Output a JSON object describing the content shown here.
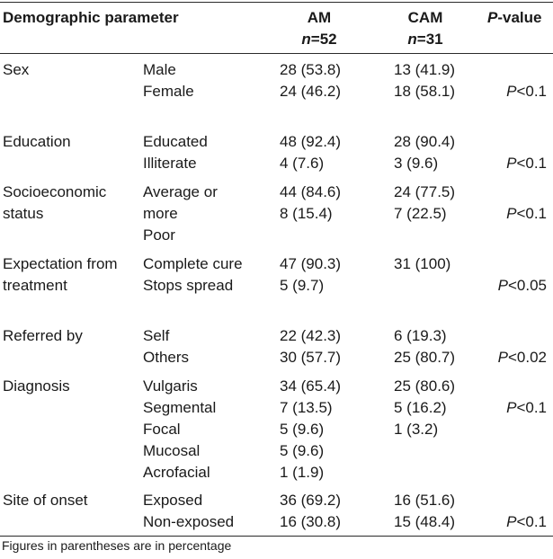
{
  "header": {
    "param": "Demographic parameter",
    "am": "AM",
    "am_n_label": "n",
    "am_n_value": "=52",
    "cam": "CAM",
    "cam_n_label": "n",
    "cam_n_value": "=31",
    "p_italic": "P",
    "p_rest": "-value"
  },
  "rows": [
    {
      "param": [
        "Sex"
      ],
      "subs": [
        "Male",
        "Female"
      ],
      "am": [
        "28 (53.8)",
        "24 (46.2)"
      ],
      "cam": [
        "13 (41.9)",
        "18 (58.1)"
      ],
      "p_label": "P",
      "p_value": "<0.1"
    },
    {
      "param": [
        "Education"
      ],
      "subs": [
        "Educated",
        "Illiterate"
      ],
      "am": [
        "48 (92.4)",
        "4 (7.6)"
      ],
      "cam": [
        "28 (90.4)",
        "3 (9.6)"
      ],
      "p_label": "P",
      "p_value": "<0.1"
    },
    {
      "param": [
        "Socioeconomic",
        "status"
      ],
      "subs": [
        "Average or",
        "more",
        "Poor"
      ],
      "am": [
        "44 (84.6)",
        "8 (15.4)"
      ],
      "cam": [
        "24 (77.5)",
        "7 (22.5)"
      ],
      "p_label": "P",
      "p_value": "<0.1"
    },
    {
      "param": [
        "Expectation from",
        "treatment"
      ],
      "subs": [
        "Complete cure",
        "Stops spread"
      ],
      "am": [
        "47 (90.3)",
        "5 (9.7)"
      ],
      "cam": [
        "31 (100)"
      ],
      "p_label": "P",
      "p_value": "<0.05"
    },
    {
      "param": [
        "Referred by"
      ],
      "subs": [
        "Self",
        "Others"
      ],
      "am": [
        "22 (42.3)",
        "30 (57.7)"
      ],
      "cam": [
        "6 (19.3)",
        "25 (80.7)"
      ],
      "p_label": "P",
      "p_value": "<0.02"
    },
    {
      "param": [
        "Diagnosis"
      ],
      "subs": [
        "Vulgaris",
        "Segmental",
        "Focal",
        "Mucosal",
        "Acrofacial"
      ],
      "am": [
        "34 (65.4)",
        "7 (13.5)",
        "5 (9.6)",
        "5 (9.6)",
        "1 (1.9)"
      ],
      "cam": [
        "25 (80.6)",
        "5 (16.2)",
        "1 (3.2)"
      ],
      "p_label": "P",
      "p_value": "<0.1"
    },
    {
      "param": [
        "Site of onset"
      ],
      "subs": [
        "Exposed",
        "Non-exposed"
      ],
      "am": [
        "36 (69.2)",
        "16 (30.8)"
      ],
      "cam": [
        "16 (51.6)",
        "15 (48.4)"
      ],
      "p_label": "P",
      "p_value": "<0.1"
    }
  ],
  "footnote": "Figures in parentheses are in percentage"
}
